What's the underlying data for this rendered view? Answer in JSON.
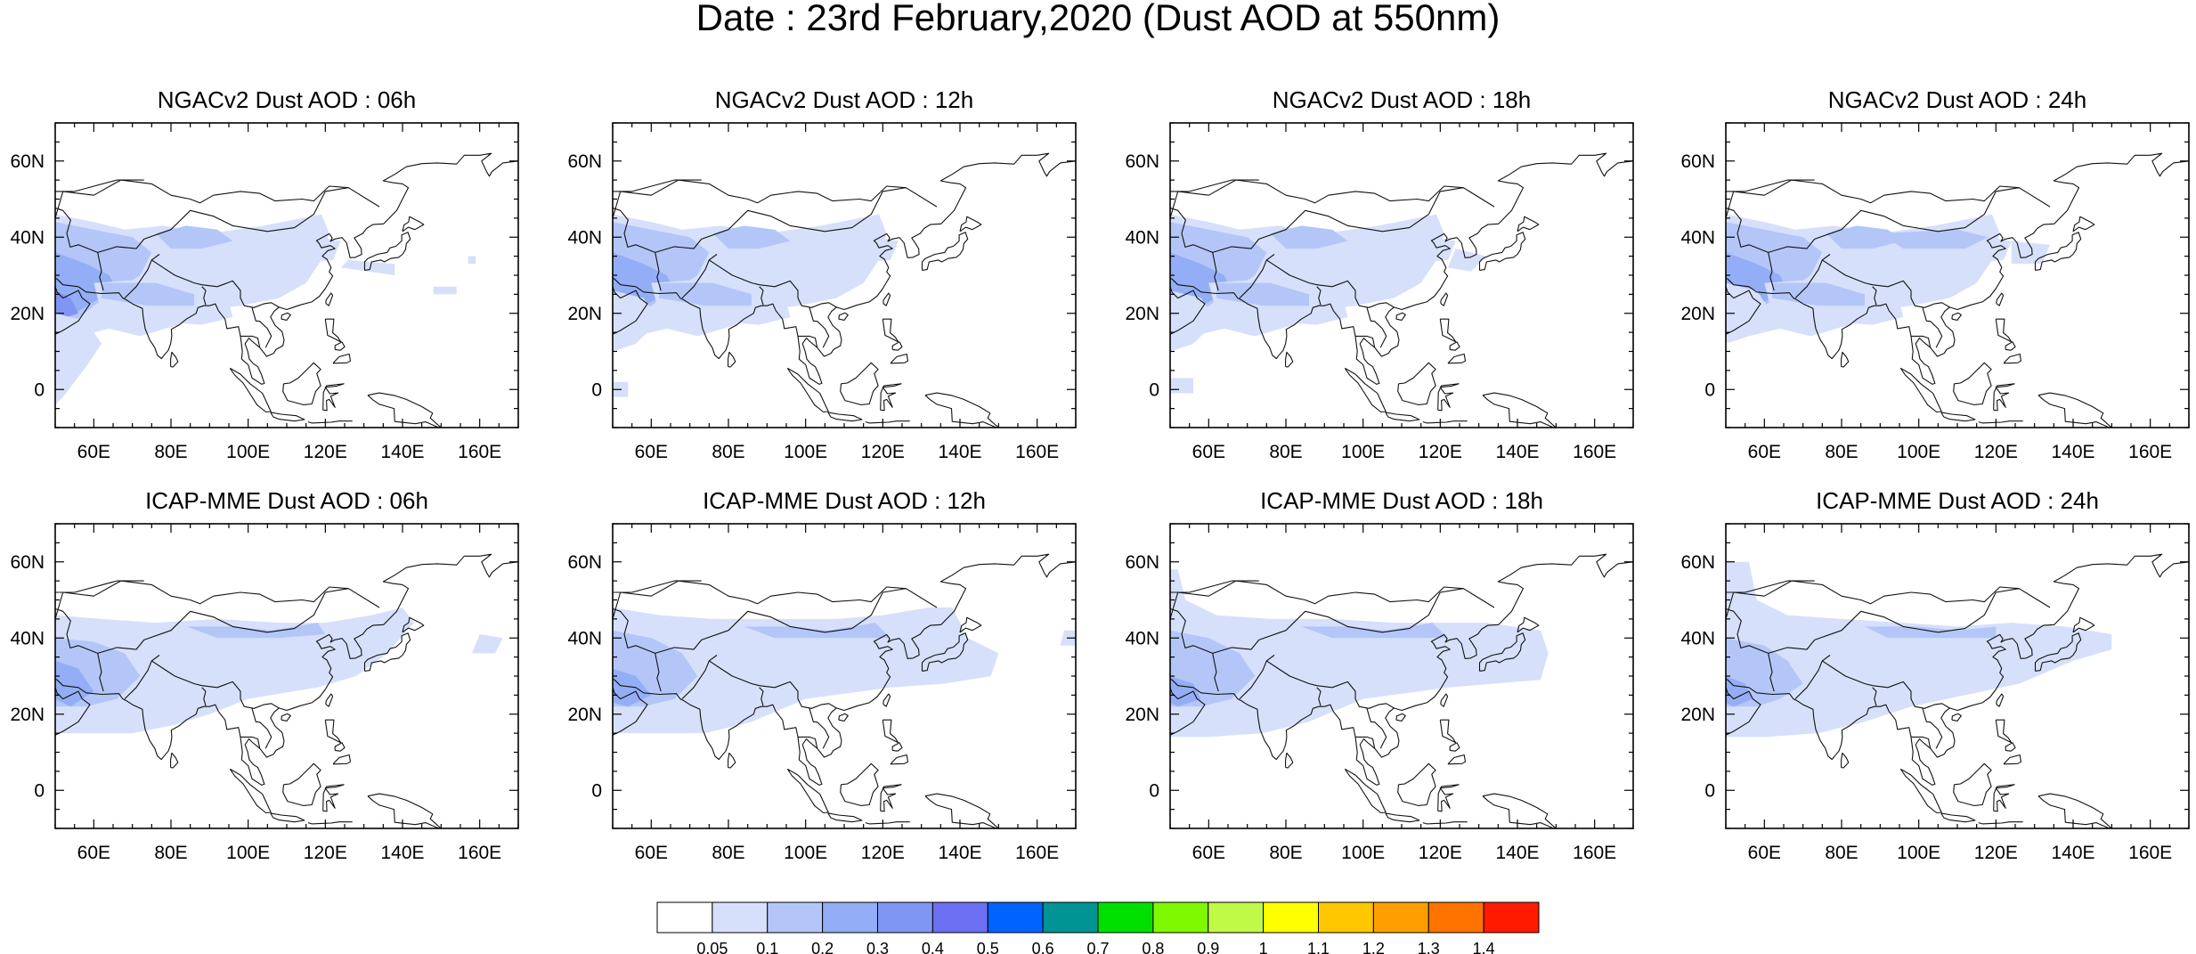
{
  "figure": {
    "title": "Date : 23rd February,2020 (Dust AOD at 550nm)"
  },
  "map_extent": {
    "lon_range": [
      50,
      170
    ],
    "lat_range": [
      -10,
      70
    ],
    "lon_ticks": [
      60,
      80,
      100,
      120,
      140,
      160
    ],
    "lon_tick_labels": [
      "60E",
      "80E",
      "100E",
      "120E",
      "140E",
      "160E"
    ],
    "lat_ticks": [
      0,
      20,
      40,
      60
    ],
    "lat_tick_labels": [
      "0",
      "20N",
      "40N",
      "60N"
    ],
    "projection": "cylindrical equidistant"
  },
  "panels": [
    {
      "title": "NGACv2 Dust AOD : 06h",
      "model": "NGACv2",
      "hour": "06h"
    },
    {
      "title": "NGACv2 Dust AOD : 12h",
      "model": "NGACv2",
      "hour": "12h"
    },
    {
      "title": "NGACv2 Dust AOD : 18h",
      "model": "NGACv2",
      "hour": "18h"
    },
    {
      "title": "NGACv2 Dust AOD : 24h",
      "model": "NGACv2",
      "hour": "24h"
    },
    {
      "title": "ICAP-MME Dust AOD : 06h",
      "model": "ICAP-MME",
      "hour": "06h"
    },
    {
      "title": "ICAP-MME Dust AOD : 12h",
      "model": "ICAP-MME",
      "hour": "12h"
    },
    {
      "title": "ICAP-MME Dust AOD : 18h",
      "model": "ICAP-MME",
      "hour": "18h"
    },
    {
      "title": "ICAP-MME Dust AOD : 24h",
      "model": "ICAP-MME",
      "hour": "24h"
    }
  ],
  "colorbar": {
    "labels": [
      "0.05",
      "0.1",
      "0.2",
      "0.3",
      "0.4",
      "0.5",
      "0.6",
      "0.7",
      "0.8",
      "0.9",
      "1",
      "1.1",
      "1.2",
      "1.3",
      "1.4"
    ],
    "colors": [
      "#ffffff",
      "#d6e0fb",
      "#b4c6f8",
      "#93aef6",
      "#8096f4",
      "#6b6ff2",
      "#0063ff",
      "#009494",
      "#00e000",
      "#7ef900",
      "#c0f946",
      "#ffff00",
      "#ffc700",
      "#ff9e00",
      "#ff7300",
      "#ff1a00"
    ]
  }
}
